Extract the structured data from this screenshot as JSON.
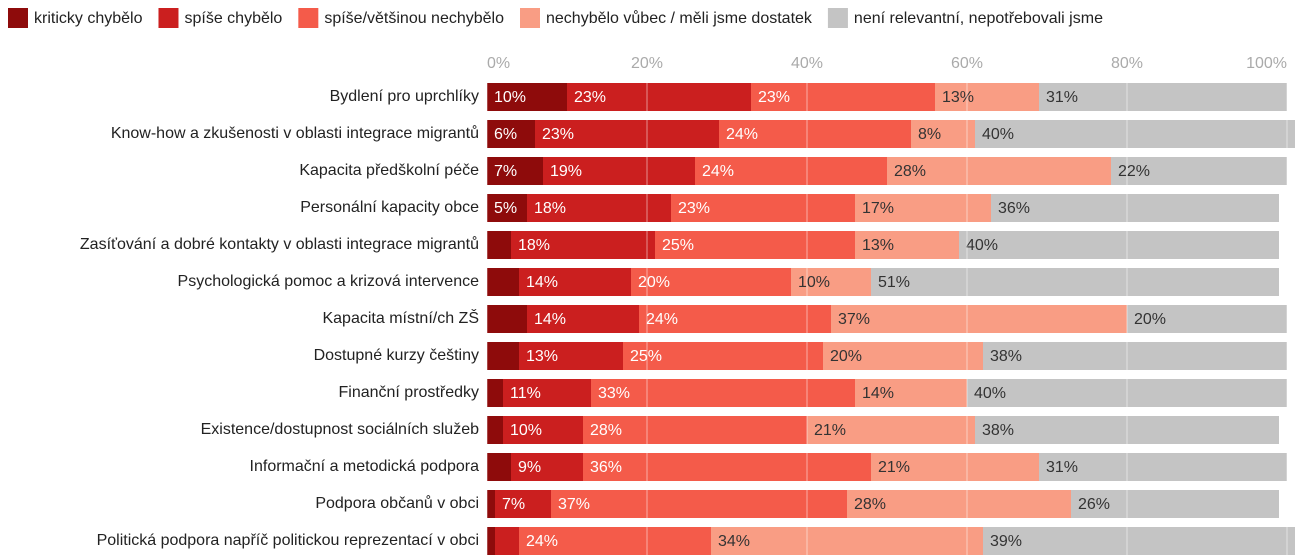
{
  "chart_data": {
    "type": "stacked-bar-horizontal",
    "categories": [
      "Bydlení pro uprchlíky",
      "Know-how a zkušenosti v oblasti integrace migrantů",
      "Kapacita předškolní péče",
      "Personální kapacity obce",
      "Zasíťování a dobré kontakty v oblasti integrace migrantů",
      "Psychologická pomoc a krizová intervence",
      "Kapacita místní/ch ZŠ",
      "Dostupné kurzy češtiny",
      "Finanční prostředky",
      "Existence/dostupnost sociálních služeb",
      "Informační a metodická podpora",
      "Podpora občanů v obci",
      "Politická podpora napříč politickou reprezentací v obci"
    ],
    "series": [
      {
        "name": "kriticky chybělo",
        "color": "#8e0b0b",
        "values": [
          10,
          6,
          7,
          5,
          3,
          4,
          5,
          4,
          2,
          2,
          3,
          1,
          1
        ],
        "value_labels": [
          "10%",
          "6%",
          "7%",
          "5%",
          null,
          null,
          null,
          null,
          null,
          null,
          null,
          null,
          null
        ]
      },
      {
        "name": "spíše chybělo",
        "color": "#cb1f1f",
        "values": [
          23,
          23,
          19,
          18,
          18,
          14,
          14,
          13,
          11,
          10,
          9,
          7,
          3
        ],
        "value_labels": [
          "23%",
          "23%",
          "19%",
          "18%",
          "18%",
          "14%",
          "14%",
          "13%",
          "11%",
          "10%",
          "9%",
          "7%",
          null
        ]
      },
      {
        "name": "spíše/většinou nechybělo",
        "color": "#f45b4a",
        "values": [
          23,
          24,
          24,
          23,
          25,
          20,
          24,
          25,
          33,
          28,
          36,
          37,
          24
        ],
        "value_labels": [
          "23%",
          "24%",
          "24%",
          "23%",
          "25%",
          "20%",
          "24%",
          "25%",
          "33%",
          "28%",
          "36%",
          "37%",
          "24%"
        ]
      },
      {
        "name": "nechybělo vůbec / měli jsme dostatek",
        "color": "#f99d84",
        "values": [
          13,
          8,
          28,
          17,
          13,
          10,
          37,
          20,
          14,
          21,
          21,
          28,
          34
        ],
        "value_labels": [
          "13%",
          "8%",
          "28%",
          "17%",
          "13%",
          "10%",
          "37%",
          "20%",
          "14%",
          "21%",
          "21%",
          "28%",
          "34%"
        ]
      },
      {
        "name": "není relevantní, nepotřebovali jsme",
        "color": "#c4c4c4",
        "values": [
          31,
          40,
          22,
          36,
          40,
          51,
          20,
          38,
          40,
          38,
          31,
          26,
          39
        ],
        "value_labels": [
          "31%",
          "40%",
          "22%",
          "36%",
          "40%",
          "51%",
          "20%",
          "38%",
          "40%",
          "38%",
          "31%",
          "26%",
          "39%"
        ]
      }
    ],
    "xlim": [
      0,
      100
    ],
    "xticks": [
      {
        "value": 0,
        "label": "0%"
      },
      {
        "value": 20,
        "label": "20%"
      },
      {
        "value": 40,
        "label": "40%"
      },
      {
        "value": 60,
        "label": "60%"
      },
      {
        "value": 80,
        "label": "80%"
      },
      {
        "value": 100,
        "label": "100%"
      }
    ],
    "grid": true
  }
}
